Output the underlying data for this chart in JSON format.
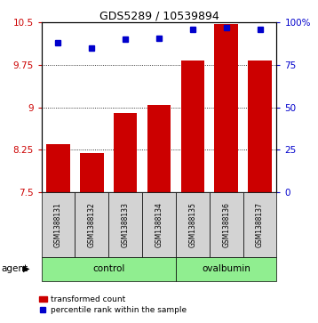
{
  "title": "GDS5289 / 10539894",
  "samples": [
    "GSM1388131",
    "GSM1388132",
    "GSM1388133",
    "GSM1388134",
    "GSM1388135",
    "GSM1388136",
    "GSM1388137"
  ],
  "bar_values": [
    8.35,
    8.2,
    8.9,
    9.05,
    9.83,
    10.47,
    9.83
  ],
  "percentile_values": [
    88,
    85,
    90,
    91,
    96,
    97,
    96
  ],
  "groups": [
    {
      "label": "control",
      "start": 0,
      "end": 3
    },
    {
      "label": "ovalbumin",
      "start": 4,
      "end": 6
    }
  ],
  "bar_color": "#cc0000",
  "dot_color": "#0000cc",
  "group_color": "#90ee90",
  "sample_bg_color": "#d3d3d3",
  "ylim_left": [
    7.5,
    10.5
  ],
  "ylim_right": [
    0,
    100
  ],
  "yticks_left": [
    7.5,
    8.25,
    9.0,
    9.75,
    10.5
  ],
  "yticks_right": [
    0,
    25,
    50,
    75,
    100
  ],
  "ytick_labels_left": [
    "7.5",
    "8.25",
    "9",
    "9.75",
    "10.5"
  ],
  "ytick_labels_right": [
    "0",
    "25",
    "50",
    "75",
    "100%"
  ],
  "grid_values": [
    7.5,
    8.25,
    9.0,
    9.75
  ],
  "agent_label": "agent",
  "legend_bar_label": "transformed count",
  "legend_dot_label": "percentile rank within the sample",
  "bar_width": 0.7,
  "title_fontsize": 9
}
